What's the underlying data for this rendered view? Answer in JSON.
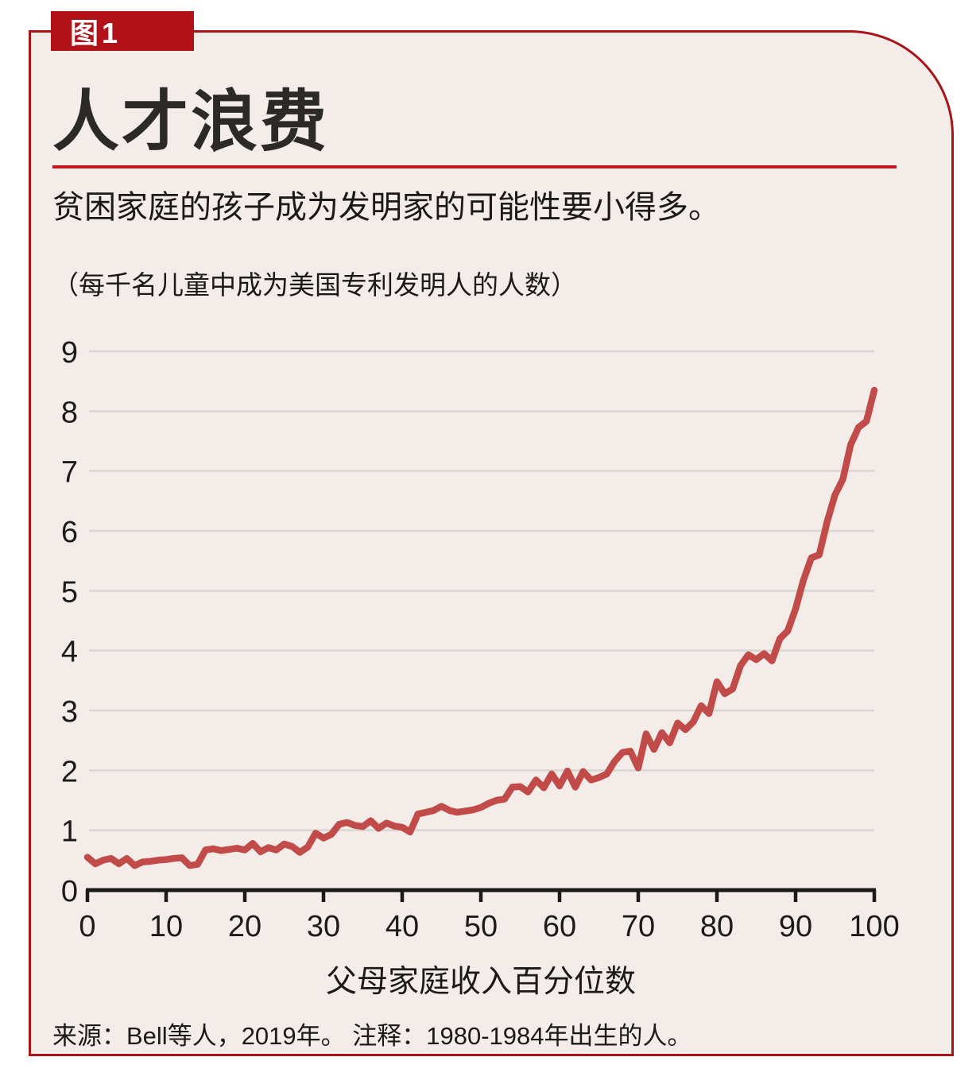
{
  "figure": {
    "badge": "图1",
    "title": "人才浪费",
    "subtitle": "贫困家庭的孩子成为发明家的可能性要小得多。",
    "unit_note": "（每千名儿童中成为美国专利发明人的人数）",
    "x_axis_title": "父母家庭收入百分位数",
    "source_note": "来源：Bell等人，2019年。 注释：1980-1984年出生的人。"
  },
  "colors": {
    "badge_red": "#b2131a",
    "panel_border_red": "#a8141a",
    "rule_red": "#c1161d",
    "line_red": "#c14b48",
    "panel_bg": "#f4ece9",
    "grid_gray": "#d9d5d2",
    "axis_black": "#1d1b1a",
    "text_dark": "#231f20"
  },
  "chart_data": {
    "type": "line",
    "title": "人才浪费",
    "subtitle": "贫困家庭的孩子成为发明家的可能性要小得多。",
    "xlabel": "父母家庭收入百分位数",
    "ylabel": "（每千名儿童中成为美国专利发明人的人数）",
    "xlim": [
      0,
      100
    ],
    "ylim": [
      0,
      9
    ],
    "xticks": [
      0,
      10,
      20,
      30,
      40,
      50,
      60,
      70,
      80,
      90,
      100
    ],
    "yticks": [
      0,
      1,
      2,
      3,
      4,
      5,
      6,
      7,
      8,
      9
    ],
    "grid": true,
    "legend": "none",
    "x_min": 0,
    "x_step": 1,
    "series": [
      {
        "name": "每千名儿童中成为美国专利发明人的人数",
        "color": "#c14b48",
        "values": [
          0.55,
          0.44,
          0.5,
          0.53,
          0.44,
          0.53,
          0.41,
          0.47,
          0.48,
          0.5,
          0.51,
          0.53,
          0.54,
          0.41,
          0.43,
          0.67,
          0.69,
          0.66,
          0.68,
          0.7,
          0.67,
          0.78,
          0.64,
          0.71,
          0.67,
          0.77,
          0.73,
          0.63,
          0.72,
          0.95,
          0.87,
          0.93,
          1.1,
          1.13,
          1.08,
          1.06,
          1.16,
          1.03,
          1.12,
          1.07,
          1.05,
          0.97,
          1.27,
          1.3,
          1.33,
          1.4,
          1.33,
          1.3,
          1.32,
          1.34,
          1.38,
          1.45,
          1.5,
          1.52,
          1.72,
          1.73,
          1.64,
          1.84,
          1.71,
          1.94,
          1.74,
          1.99,
          1.72,
          1.98,
          1.84,
          1.88,
          1.94,
          2.15,
          2.3,
          2.32,
          2.04,
          2.61,
          2.35,
          2.63,
          2.46,
          2.79,
          2.68,
          2.81,
          3.08,
          2.95,
          3.48,
          3.28,
          3.36,
          3.75,
          3.93,
          3.85,
          3.95,
          3.83,
          4.2,
          4.33,
          4.7,
          5.18,
          5.55,
          5.6,
          6.15,
          6.6,
          6.86,
          7.44,
          7.73,
          7.83,
          8.35
        ]
      }
    ]
  }
}
